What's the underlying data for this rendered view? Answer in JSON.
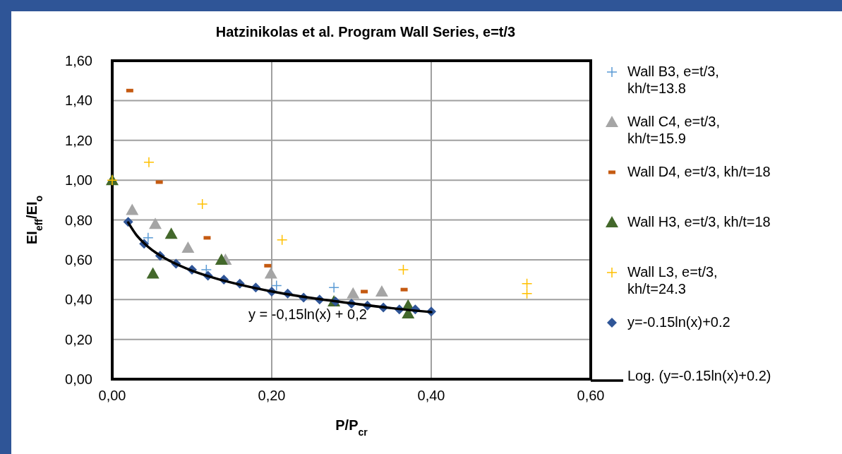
{
  "chart_data": {
    "type": "scatter",
    "title": "Hatzinikolas et al. Program Wall Series, e=t/3",
    "xlabel": "P/P$_{cr}$",
    "ylabel": "EI$_{eff}$/EI$_{o}$",
    "xlim": [
      0,
      0.6
    ],
    "xticks": [
      {
        "value": 0,
        "label": "0,00"
      },
      {
        "value": 0.2,
        "label": "0,20"
      },
      {
        "value": 0.4,
        "label": "0,40"
      },
      {
        "value": 0.6,
        "label": "0,60"
      }
    ],
    "ylim": [
      0,
      1.6
    ],
    "yticks": [
      {
        "value": 0,
        "label": "0,00"
      },
      {
        "value": 0.2,
        "label": "0,20"
      },
      {
        "value": 0.4,
        "label": "0,40"
      },
      {
        "value": 0.6,
        "label": "0,60"
      },
      {
        "value": 0.8,
        "label": "0,80"
      },
      {
        "value": 1.0,
        "label": "1,00"
      },
      {
        "value": 1.2,
        "label": "1,20"
      },
      {
        "value": 1.4,
        "label": "1,40"
      },
      {
        "value": 1.6,
        "label": "1,60"
      }
    ],
    "grid": true,
    "legend": "right",
    "annotations": [
      "y = -0,15ln(x) + 0,2"
    ],
    "series": [
      {
        "name": "Wall B3, e=t/3, kh/t=13.8",
        "marker": "cross",
        "color": "#5b9bd5",
        "x": [
          0.045,
          0.118,
          0.206,
          0.278
        ],
        "values": [
          0.71,
          0.55,
          0.47,
          0.46
        ]
      },
      {
        "name": "Wall C4, e=t/3, kh/t=15.9",
        "marker": "triangle",
        "color": "#a5a5a5",
        "x": [
          0.025,
          0.054,
          0.095,
          0.142,
          0.199,
          0.302,
          0.338
        ],
        "values": [
          0.85,
          0.78,
          0.66,
          0.6,
          0.53,
          0.43,
          0.44
        ]
      },
      {
        "name": "Wall D4, e=t/3, kh/t=18",
        "marker": "square",
        "color": "#c55a11",
        "x": [
          0.022,
          0.059,
          0.119,
          0.195,
          0.316,
          0.366
        ],
        "values": [
          1.45,
          0.99,
          0.71,
          0.57,
          0.44,
          0.45
        ]
      },
      {
        "name": "Wall H3, e=t/3, kh/t=18",
        "marker": "triangle",
        "color": "#43682b",
        "x": [
          0,
          0.051,
          0.074,
          0.137,
          0.278,
          0.371,
          0.371
        ],
        "values": [
          1.0,
          0.53,
          0.73,
          0.6,
          0.39,
          0.37,
          0.33
        ]
      },
      {
        "name": "Wall L3, e=t/3, kh/t=24.3",
        "marker": "cross",
        "color": "#ffc000",
        "x": [
          0,
          0.046,
          0.113,
          0.213,
          0.365,
          0.52,
          0.52
        ],
        "values": [
          1.0,
          1.09,
          0.88,
          0.7,
          0.55,
          0.48,
          0.43
        ]
      },
      {
        "name": "y=-0.15ln(x)+0.2",
        "marker": "diamond",
        "color": "#2f5597",
        "x": [
          0.02,
          0.04,
          0.06,
          0.08,
          0.1,
          0.12,
          0.14,
          0.16,
          0.18,
          0.2,
          0.22,
          0.24,
          0.26,
          0.28,
          0.3,
          0.32,
          0.34,
          0.36,
          0.38,
          0.4
        ],
        "values": [
          0.79,
          0.68,
          0.62,
          0.58,
          0.55,
          0.52,
          0.5,
          0.48,
          0.46,
          0.44,
          0.43,
          0.41,
          0.4,
          0.39,
          0.38,
          0.37,
          0.36,
          0.35,
          0.35,
          0.34
        ]
      },
      {
        "name": "Log. (y=-0.15ln(x)+0.2)",
        "type": "line",
        "marker": "none",
        "line_style": "solid",
        "color": "#000000",
        "x": [
          0.02,
          0.03,
          0.04,
          0.05,
          0.06,
          0.08,
          0.1,
          0.13,
          0.16,
          0.2,
          0.25,
          0.3,
          0.35,
          0.4
        ],
        "values": [
          0.787,
          0.726,
          0.683,
          0.649,
          0.622,
          0.579,
          0.545,
          0.506,
          0.475,
          0.441,
          0.408,
          0.381,
          0.357,
          0.337
        ]
      }
    ]
  }
}
